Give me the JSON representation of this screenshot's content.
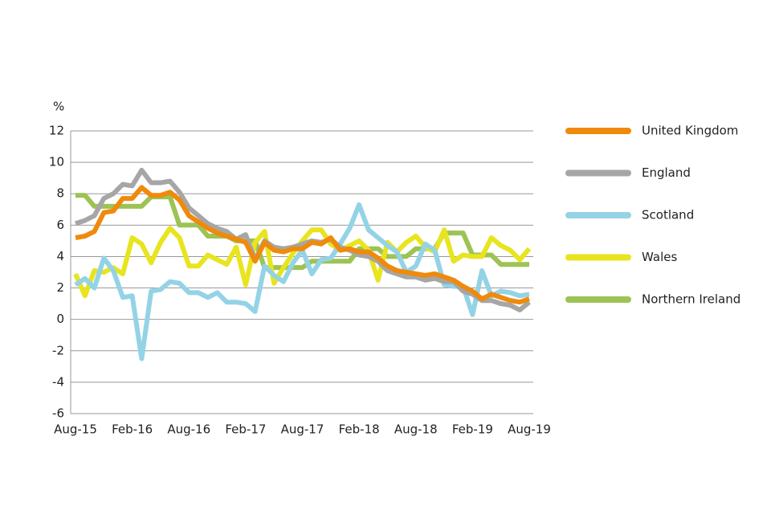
{
  "chart_data": {
    "type": "line",
    "y_unit_label": "%",
    "categories": [
      "Aug-15",
      null,
      null,
      null,
      null,
      null,
      "Feb-16",
      null,
      null,
      null,
      null,
      null,
      "Aug-16",
      null,
      null,
      null,
      null,
      null,
      "Feb-17",
      null,
      null,
      null,
      null,
      null,
      "Aug-17",
      null,
      null,
      null,
      null,
      null,
      "Feb-18",
      null,
      null,
      null,
      null,
      null,
      "Aug-18",
      null,
      null,
      null,
      null,
      null,
      "Feb-19",
      null,
      null,
      null,
      null,
      null,
      "Aug-19"
    ],
    "ylim": [
      -6,
      12
    ],
    "yticks": [
      -6,
      -4,
      -2,
      0,
      2,
      4,
      6,
      8,
      10,
      12
    ],
    "grid": true,
    "legend": "right",
    "series": [
      {
        "name": "United Kingdom",
        "color": "#ef8a0c",
        "values": [
          5.2,
          5.3,
          5.6,
          6.8,
          6.9,
          7.7,
          7.7,
          8.4,
          7.9,
          7.9,
          8.1,
          7.6,
          6.6,
          6.2,
          5.8,
          5.5,
          5.3,
          5.1,
          4.9,
          3.7,
          4.9,
          4.4,
          4.3,
          4.5,
          4.5,
          4.9,
          4.8,
          5.2,
          4.4,
          4.5,
          4.3,
          4.3,
          3.9,
          3.4,
          3.1,
          3.0,
          2.9,
          2.8,
          2.9,
          2.7,
          2.5,
          2.1,
          1.8,
          1.3,
          1.6,
          1.4,
          1.2,
          1.1,
          1.3
        ]
      },
      {
        "name": "England",
        "color": "#a6a6a6",
        "values": [
          6.1,
          6.3,
          6.6,
          7.7,
          8.0,
          8.6,
          8.5,
          9.5,
          8.7,
          8.7,
          8.8,
          8.1,
          7.1,
          6.6,
          6.1,
          5.8,
          5.6,
          5.1,
          5.4,
          3.8,
          5.0,
          4.6,
          4.5,
          4.6,
          4.8,
          5.0,
          4.9,
          5.1,
          4.6,
          4.4,
          4.1,
          4.0,
          3.7,
          3.1,
          2.9,
          2.7,
          2.7,
          2.5,
          2.6,
          2.4,
          2.4,
          1.8,
          1.6,
          1.2,
          1.2,
          1.0,
          0.9,
          0.6,
          1.1
        ]
      },
      {
        "name": "Scotland",
        "color": "#94d3e6",
        "values": [
          2.2,
          2.6,
          2.0,
          3.9,
          3.1,
          1.4,
          1.5,
          -2.5,
          1.8,
          1.9,
          2.4,
          2.3,
          1.7,
          1.7,
          1.4,
          1.7,
          1.1,
          1.1,
          1.0,
          0.5,
          3.4,
          2.8,
          2.4,
          3.6,
          4.4,
          2.9,
          3.8,
          3.9,
          4.8,
          5.8,
          7.3,
          5.7,
          5.2,
          4.7,
          4.3,
          3.0,
          3.4,
          4.8,
          4.4,
          2.2,
          2.1,
          2.1,
          0.3,
          3.1,
          1.5,
          1.8,
          1.7,
          1.5,
          1.6
        ]
      },
      {
        "name": "Wales",
        "color": "#e8e41f",
        "values": [
          2.9,
          1.5,
          3.1,
          3.0,
          3.3,
          2.9,
          5.2,
          4.8,
          3.6,
          4.9,
          5.8,
          5.2,
          3.4,
          3.4,
          4.1,
          3.8,
          3.5,
          4.6,
          2.2,
          4.9,
          5.6,
          2.3,
          3.3,
          4.2,
          5.0,
          5.7,
          5.7,
          4.8,
          4.4,
          4.7,
          5.0,
          4.4,
          2.5,
          4.9,
          4.3,
          4.9,
          5.3,
          4.6,
          4.3,
          5.7,
          3.7,
          4.1,
          4.0,
          4.0,
          5.2,
          4.7,
          4.4,
          3.8,
          4.5
        ]
      },
      {
        "name": "Northern Ireland",
        "color": "#9cc354",
        "values": [
          7.9,
          7.9,
          7.2,
          7.2,
          7.2,
          7.2,
          7.2,
          7.2,
          7.8,
          7.8,
          7.8,
          6.0,
          6.0,
          6.0,
          5.3,
          5.3,
          5.3,
          5.0,
          5.0,
          5.0,
          3.3,
          3.3,
          3.3,
          3.3,
          3.3,
          3.7,
          3.7,
          3.7,
          3.7,
          3.7,
          4.5,
          4.5,
          4.5,
          4.0,
          4.0,
          4.0,
          4.5,
          4.5,
          4.5,
          5.5,
          5.5,
          5.5,
          4.1,
          4.1,
          4.1,
          3.5,
          3.5,
          3.5,
          3.5
        ]
      }
    ]
  }
}
